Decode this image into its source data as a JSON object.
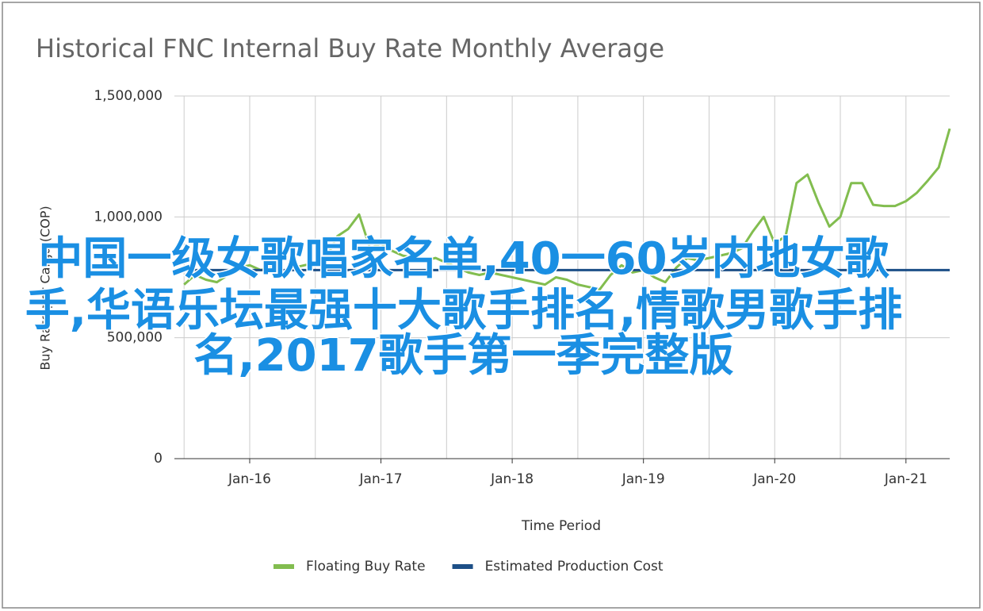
{
  "chart_data": {
    "type": "line",
    "title": "Historical FNC Internal Buy Rate Monthly Average",
    "x_label": "Time Period",
    "y_label": "Buy Rate per Carga (COP)",
    "categories": [
      null,
      null,
      null,
      null,
      null,
      null,
      "Jan-16",
      null,
      null,
      null,
      null,
      null,
      null,
      null,
      null,
      null,
      null,
      null,
      "Jan-17",
      null,
      null,
      null,
      null,
      null,
      null,
      null,
      null,
      null,
      null,
      null,
      "Jan-18",
      null,
      null,
      null,
      null,
      null,
      null,
      null,
      null,
      null,
      null,
      null,
      "Jan-19",
      null,
      null,
      null,
      null,
      null,
      null,
      null,
      null,
      null,
      null,
      null,
      "Jan-20",
      null,
      null,
      null,
      null,
      null,
      null,
      null,
      null,
      null,
      null,
      null,
      "Jan-21",
      null,
      null,
      null,
      null
    ],
    "series": [
      {
        "name": "Floating Buy Rate",
        "color": "#82bd4f",
        "values": [
          720000,
          760000,
          740000,
          730000,
          760000,
          790000,
          800000,
          780000,
          790000,
          770000,
          790000,
          800000,
          810000,
          830000,
          920000,
          950000,
          1010000,
          870000,
          890000,
          860000,
          840000,
          830000,
          820000,
          830000,
          810000,
          790000,
          770000,
          760000,
          770000,
          760000,
          750000,
          740000,
          730000,
          720000,
          750000,
          740000,
          720000,
          710000,
          700000,
          760000,
          800000,
          770000,
          780000,
          750000,
          730000,
          790000,
          830000,
          820000,
          830000,
          840000,
          850000,
          870000,
          940000,
          1000000,
          890000,
          920000,
          1140000,
          1175000,
          1060000,
          960000,
          1000000,
          1140000,
          1140000,
          1050000,
          1045000,
          1045000,
          1065000,
          1100000,
          1150000,
          1205000,
          1365000
        ]
      },
      {
        "name": "Estimated Production Cost",
        "color": "#1d4f87",
        "values": [
          780000,
          780000,
          780000,
          780000,
          780000,
          780000,
          780000,
          780000,
          780000,
          780000,
          780000,
          780000,
          780000,
          780000,
          780000,
          780000,
          780000,
          780000,
          780000,
          780000,
          780000,
          780000,
          780000,
          780000,
          780000,
          780000,
          780000,
          780000,
          780000,
          780000,
          780000,
          780000,
          780000,
          780000,
          780000,
          780000,
          780000,
          780000,
          780000,
          780000,
          780000,
          780000,
          780000,
          780000,
          780000,
          780000,
          780000,
          780000,
          780000,
          780000,
          780000,
          780000,
          780000,
          780000,
          780000,
          780000,
          780000,
          780000,
          780000,
          780000,
          780000,
          780000,
          780000,
          780000,
          780000,
          780000,
          780000,
          780000,
          780000,
          780000,
          780000
        ]
      }
    ],
    "ylim": [
      0,
      1500000
    ],
    "yticks": [
      0,
      {
        "value": 500000,
        "label": "500,000"
      },
      {
        "value": 1000000,
        "label": "1,000,000"
      },
      {
        "value": 1500000,
        "label": "1,500,000"
      }
    ],
    "grid": true,
    "legend": "bottom",
    "overlay_text": [
      "中国一级女歌唱家名单,40一60岁内地女歌",
      "手,华语乐坛最强十大歌手排名,情歌男歌手排",
      "名,2017歌手第一季完整版"
    ],
    "overlay_color": "#1a8fe3"
  }
}
